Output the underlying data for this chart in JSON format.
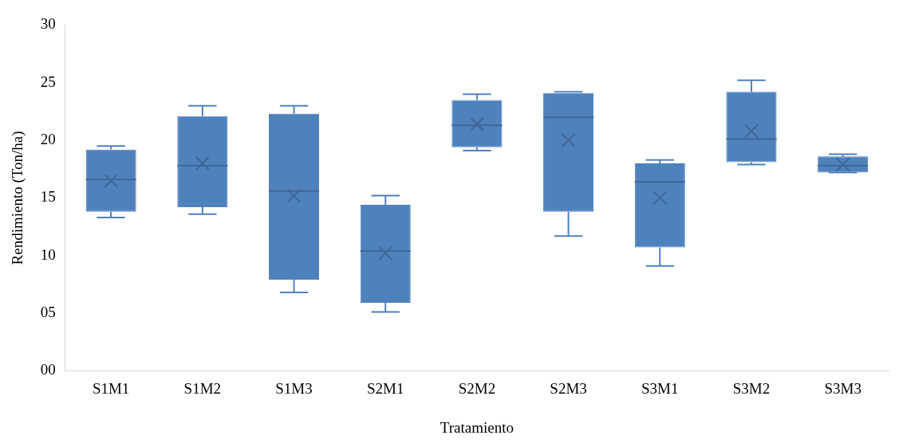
{
  "chart_data": {
    "type": "box",
    "xlabel": "Tratamiento",
    "ylabel": "Rendimiento (Ton/ha)",
    "categories": [
      "S1M1",
      "S1M2",
      "S1M3",
      "S2M1",
      "S2M2",
      "S2M3",
      "S3M1",
      "S3M2",
      "S3M3"
    ],
    "color": "#4f81bd",
    "boxes": [
      {
        "low": 13.3,
        "q1": 13.8,
        "median": 16.6,
        "q3": 19.2,
        "high": 19.5,
        "mean": 16.5
      },
      {
        "low": 13.6,
        "q1": 14.2,
        "median": 17.8,
        "q3": 22.1,
        "high": 23.0,
        "mean": 18.0
      },
      {
        "low": 6.8,
        "q1": 7.9,
        "median": 15.6,
        "q3": 22.3,
        "high": 23.0,
        "mean": 15.2
      },
      {
        "low": 5.1,
        "q1": 5.9,
        "median": 10.4,
        "q3": 14.4,
        "high": 15.2,
        "mean": 10.2
      },
      {
        "low": 19.1,
        "q1": 19.4,
        "median": 21.3,
        "q3": 23.5,
        "high": 24.0,
        "mean": 21.4
      },
      {
        "low": 11.7,
        "q1": 13.8,
        "median": 22.0,
        "q3": 24.1,
        "high": 24.2,
        "mean": 20.0
      },
      {
        "low": 9.1,
        "q1": 10.7,
        "median": 16.4,
        "q3": 18.0,
        "high": 18.3,
        "mean": 15.0
      },
      {
        "low": 17.9,
        "q1": 18.1,
        "median": 20.1,
        "q3": 24.2,
        "high": 25.2,
        "mean": 20.8
      },
      {
        "low": 17.2,
        "q1": 17.2,
        "median": 17.8,
        "q3": 18.6,
        "high": 18.8,
        "mean": 17.9
      }
    ],
    "ylim": [
      0,
      30
    ],
    "yticks": [
      {
        "value": 0,
        "label": "00"
      },
      {
        "value": 5,
        "label": "05"
      },
      10,
      15,
      20,
      25,
      30
    ],
    "grid": false,
    "legend": false
  }
}
